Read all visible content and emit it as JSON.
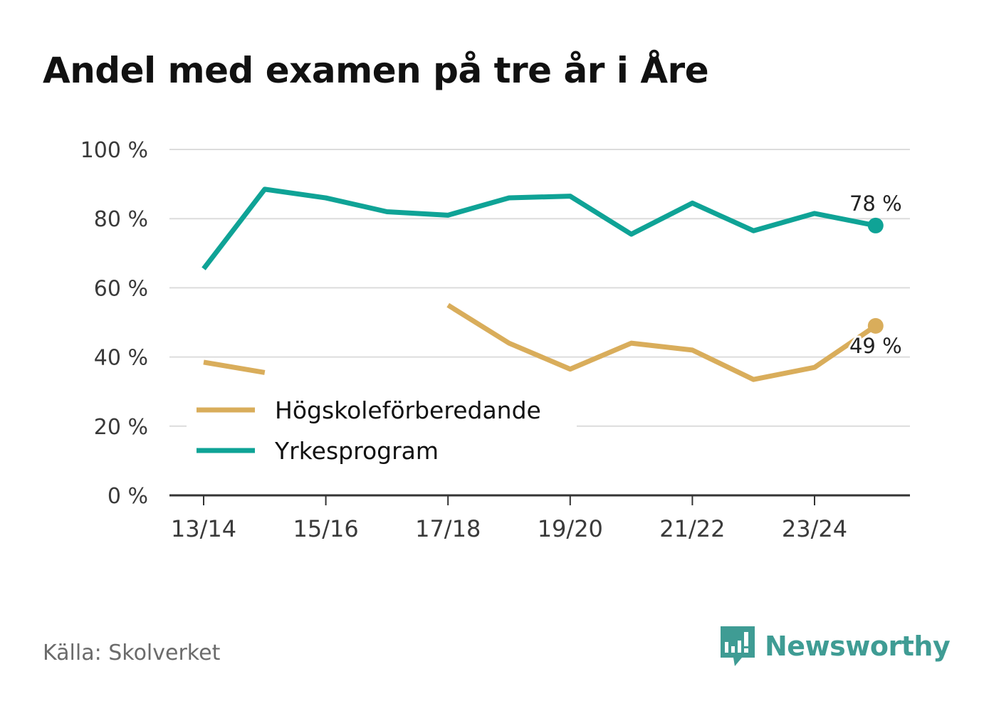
{
  "title": "Andel med examen på tre år i Åre",
  "source": "Källa: Skolverket",
  "brand": {
    "name": "Newsworthy",
    "icon": "newsworthy-logo-icon",
    "color": "#3f9c94"
  },
  "chart_data": {
    "type": "line",
    "title": "Andel med examen på tre år i Åre",
    "xlabel": "",
    "ylabel": "",
    "ylim": [
      0,
      100
    ],
    "yticks": [
      0,
      20,
      40,
      60,
      80,
      100
    ],
    "ytick_labels": [
      "0 %",
      "20 %",
      "40 %",
      "60 %",
      "80 %",
      "100 %"
    ],
    "categories": [
      "13/14",
      "14/15",
      "15/16",
      "16/17",
      "17/18",
      "18/19",
      "19/20",
      "20/21",
      "21/22",
      "22/23",
      "23/24",
      "24/25"
    ],
    "xtick_labels": [
      "13/14",
      "15/16",
      "17/18",
      "19/20",
      "21/22",
      "23/24"
    ],
    "grid": true,
    "legend_position": "bottom-left",
    "series": [
      {
        "name": "Högskoleförberedande",
        "color": "#d9ad5b",
        "values": [
          38.5,
          35.5,
          null,
          null,
          55,
          44,
          36.5,
          44,
          42,
          33.5,
          37,
          49
        ],
        "end_label": "49 %"
      },
      {
        "name": "Yrkesprogram",
        "color": "#0fa396",
        "values": [
          65.5,
          88.5,
          86,
          82,
          81,
          86,
          86.5,
          75.5,
          84.5,
          76.5,
          81.5,
          78
        ],
        "end_label": "78 %"
      }
    ]
  }
}
